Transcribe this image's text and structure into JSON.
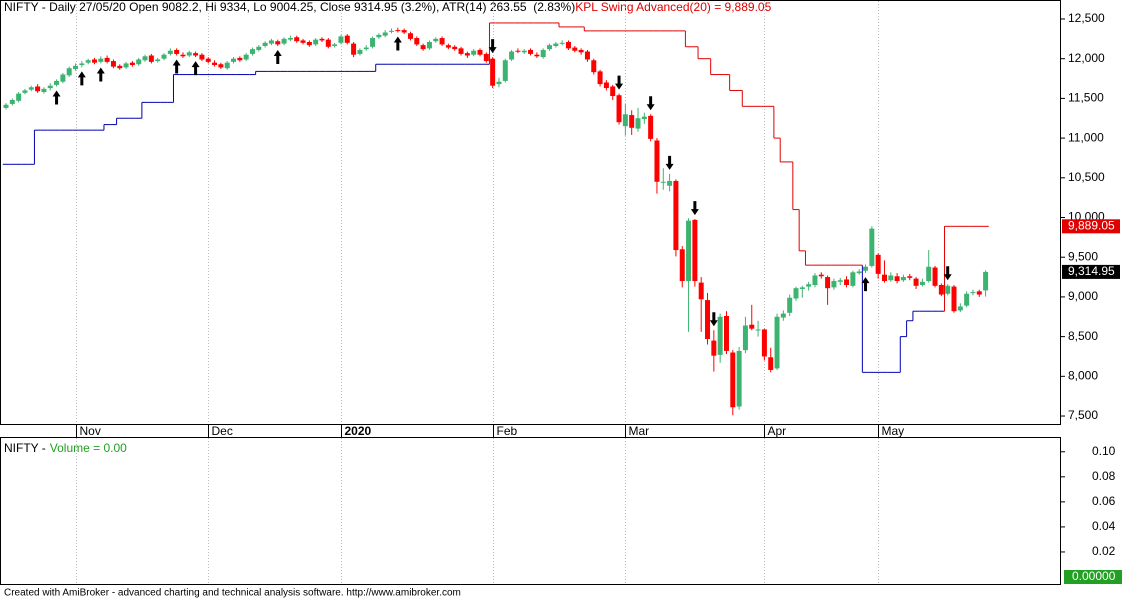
{
  "chart_data": [
    {
      "type": "candlestick",
      "title": "NIFTY - Daily 27/05/20 Open 9082.2, Hi 9334, Lo 9004.25, Close 9314.95 (3.2%), ATR(14) 263.55  (2.83%)",
      "indicator_label": "KPL Swing Advanced(20) = 9,889.05",
      "categories": [
        null,
        null,
        null,
        null,
        null,
        null,
        null,
        null,
        null,
        null,
        null,
        "Nov",
        null,
        null,
        null,
        null,
        null,
        null,
        null,
        null,
        null,
        null,
        null,
        null,
        null,
        null,
        null,
        null,
        null,
        null,
        null,
        null,
        "Dec",
        null,
        null,
        null,
        null,
        null,
        null,
        null,
        null,
        null,
        null,
        null,
        null,
        null,
        null,
        null,
        null,
        null,
        null,
        null,
        null,
        "2020",
        null,
        null,
        null,
        null,
        null,
        null,
        null,
        null,
        null,
        null,
        null,
        null,
        null,
        null,
        null,
        null,
        null,
        null,
        null,
        null,
        null,
        null,
        null,
        "Feb",
        null,
        null,
        null,
        null,
        null,
        null,
        null,
        null,
        null,
        null,
        null,
        null,
        null,
        null,
        null,
        null,
        null,
        null,
        null,
        null,
        "Mar",
        null,
        null,
        null,
        null,
        null,
        null,
        null,
        null,
        null,
        null,
        null,
        null,
        null,
        null,
        null,
        null,
        null,
        null,
        null,
        null,
        null,
        "Apr",
        null,
        null,
        null,
        null,
        null,
        null,
        null,
        null,
        null,
        null,
        null,
        null,
        null,
        null,
        null,
        null,
        null,
        "May",
        null,
        null,
        null,
        null,
        null,
        null,
        null,
        null,
        null,
        null,
        null,
        null,
        null,
        null,
        null,
        null,
        null
      ],
      "open": [
        11380,
        11430,
        11470,
        11570,
        11610,
        11650,
        11580,
        11630,
        11670,
        11710,
        11790,
        11870,
        11920,
        11950,
        11990,
        11960,
        12010,
        11970,
        11910,
        11890,
        11950,
        11930,
        11980,
        12040,
        11970,
        12000,
        12060,
        12110,
        12050,
        12040,
        12070,
        12050,
        12000,
        11950,
        11930,
        11880,
        11960,
        12010,
        11990,
        12060,
        12110,
        12160,
        12190,
        12220,
        12190,
        12240,
        12270,
        12230,
        12210,
        12180,
        12250,
        12240,
        12160,
        12200,
        12290,
        12190,
        12060,
        12120,
        12150,
        12270,
        12290,
        12340,
        12360,
        12360,
        12320,
        12260,
        12170,
        12130,
        12220,
        12260,
        12170,
        12150,
        12130,
        12070,
        12050,
        12110,
        12060,
        12000,
        11680,
        11720,
        11990,
        12100,
        12080,
        12110,
        12050,
        12020,
        12120,
        12160,
        12200,
        12210,
        12140,
        12110,
        12090,
        11980,
        11840,
        11700,
        11650,
        11540,
        11150,
        11290,
        11120,
        11240,
        11280,
        10970,
        10440,
        10400,
        10460,
        9600,
        9200,
        9970,
        9180,
        8960,
        8450,
        8270,
        8760,
        8300,
        7620,
        8330,
        8650,
        8590,
        8590,
        8240,
        8100,
        8740,
        8800,
        8980,
        9100,
        9130,
        9150,
        9280,
        9250,
        9120,
        9190,
        9220,
        9140,
        9300,
        9330,
        9390,
        9530,
        9280,
        9210,
        9260,
        9210,
        9260,
        9230,
        9150,
        9200,
        9370,
        9150,
        9040,
        9130,
        8830,
        8890,
        9050,
        9070,
        9082.2
      ],
      "high": [
        11440,
        11500,
        11580,
        11620,
        11660,
        11680,
        11640,
        11690,
        11740,
        11820,
        11900,
        11940,
        11970,
        12000,
        12010,
        12030,
        12040,
        11990,
        11930,
        11960,
        11970,
        12010,
        12050,
        12060,
        12010,
        12070,
        12130,
        12130,
        12080,
        12100,
        12090,
        12070,
        12020,
        11980,
        11950,
        11970,
        12020,
        12030,
        12070,
        12140,
        12170,
        12220,
        12250,
        12240,
        12270,
        12290,
        12290,
        12250,
        12230,
        12260,
        12270,
        12260,
        12200,
        12300,
        12310,
        12210,
        12130,
        12170,
        12280,
        12320,
        12360,
        12380,
        12390,
        12380,
        12340,
        12280,
        12190,
        12230,
        12270,
        12280,
        12190,
        12170,
        12150,
        12090,
        12120,
        12130,
        12080,
        12020,
        11760,
        12000,
        12110,
        12130,
        12120,
        12130,
        12080,
        12130,
        12190,
        12210,
        12230,
        12230,
        12160,
        12130,
        12110,
        12000,
        11860,
        11730,
        11670,
        11560,
        11430,
        11350,
        11380,
        11320,
        11300,
        11000,
        10620,
        10550,
        10480,
        9640,
        9990,
        9980,
        9250,
        9050,
        8580,
        8790,
        8820,
        8330,
        8370,
        8750,
        8900,
        8700,
        8600,
        8360,
        8790,
        8830,
        9030,
        9130,
        9140,
        9190,
        9300,
        9310,
        9270,
        9230,
        9240,
        9260,
        9330,
        9350,
        9410,
        9890,
        9550,
        9460,
        9310,
        9300,
        9280,
        9290,
        9250,
        9230,
        9590,
        9390,
        9170,
        9160,
        9150,
        8920,
        9070,
        9090,
        9090,
        9334
      ],
      "low": [
        11360,
        11410,
        11450,
        11550,
        11590,
        11570,
        11560,
        11600,
        11650,
        11690,
        11770,
        11850,
        11890,
        11930,
        11930,
        11940,
        11940,
        11880,
        11860,
        11870,
        11900,
        11910,
        11960,
        11940,
        11950,
        11980,
        12040,
        12040,
        12010,
        12020,
        12020,
        11970,
        11940,
        11900,
        11870,
        11860,
        11940,
        11960,
        11970,
        12040,
        12090,
        12140,
        12170,
        12160,
        12170,
        12220,
        12200,
        12180,
        12150,
        12160,
        12210,
        12130,
        12140,
        12180,
        12180,
        12020,
        12040,
        12100,
        12130,
        12250,
        12270,
        12320,
        12330,
        12310,
        12230,
        12160,
        12100,
        12110,
        12200,
        12160,
        12120,
        12100,
        12040,
        12010,
        12030,
        12030,
        11950,
        11630,
        11640,
        11700,
        11970,
        12070,
        12060,
        12040,
        12010,
        12000,
        12100,
        12140,
        12170,
        12110,
        12080,
        12050,
        11960,
        11800,
        11650,
        11600,
        11480,
        11170,
        11030,
        11040,
        11080,
        11180,
        10960,
        10300,
        10350,
        10330,
        9510,
        9120,
        8560,
        9130,
        8560,
        8400,
        8060,
        8170,
        8280,
        7510,
        7580,
        8290,
        8580,
        8500,
        8200,
        8050,
        8080,
        8700,
        8760,
        8950,
        8990,
        9080,
        9120,
        9230,
        8900,
        9090,
        9150,
        9120,
        9120,
        9280,
        9300,
        9370,
        9230,
        9180,
        9190,
        9170,
        9190,
        9210,
        9100,
        9130,
        9180,
        9120,
        9010,
        9020,
        8800,
        8810,
        8870,
        9020,
        9000,
        9004.25
      ],
      "close": [
        11420,
        11480,
        11560,
        11600,
        11640,
        11590,
        11620,
        11660,
        11720,
        11800,
        11880,
        11910,
        11940,
        11980,
        11950,
        12000,
        11960,
        11900,
        11880,
        11940,
        11920,
        11990,
        12030,
        11960,
        11990,
        12050,
        12100,
        12060,
        12030,
        12080,
        12040,
        11990,
        11960,
        11920,
        11890,
        11950,
        12000,
        11980,
        12050,
        12120,
        12150,
        12200,
        12230,
        12180,
        12250,
        12260,
        12220,
        12200,
        12170,
        12240,
        12230,
        12150,
        12180,
        12280,
        12200,
        12050,
        12110,
        12140,
        12260,
        12300,
        12330,
        12350,
        12350,
        12330,
        12250,
        12180,
        12120,
        12210,
        12250,
        12180,
        12140,
        12120,
        12060,
        12040,
        12100,
        12050,
        11970,
        11660,
        11710,
        11980,
        12090,
        12090,
        12100,
        12060,
        12030,
        12110,
        12170,
        12190,
        12200,
        12130,
        12100,
        12080,
        11990,
        11830,
        11680,
        11630,
        11530,
        11200,
        11300,
        11130,
        11250,
        11270,
        10990,
        10450,
        10450,
        10460,
        9590,
        9200,
        9960,
        9200,
        8970,
        8470,
        8260,
        8750,
        8320,
        7610,
        8320,
        8640,
        8600,
        8590,
        8250,
        8080,
        8750,
        8790,
        8990,
        9110,
        9120,
        9160,
        9270,
        9260,
        9110,
        9200,
        9210,
        9150,
        9310,
        9320,
        9380,
        9860,
        9290,
        9200,
        9270,
        9200,
        9250,
        9240,
        9140,
        9190,
        9380,
        9140,
        9030,
        9140,
        8820,
        8880,
        9040,
        9060,
        9030,
        9314.95
      ],
      "up_color": "#3cb371",
      "down_color": "#ff0000",
      "stops": [
        {
          "color": "#0000b0",
          "values": [
            10670,
            10670,
            10670,
            10670,
            10670,
            11100,
            11100,
            11100,
            11100,
            11100,
            11100,
            11100,
            11100,
            11100,
            11100,
            11100,
            11170,
            11170,
            11250,
            11250,
            11250,
            11250,
            11450,
            11450,
            11450,
            11450,
            11450,
            11800,
            11800,
            11800,
            11800,
            11800,
            11800,
            11800,
            11800,
            11800,
            11800,
            11800,
            11800,
            11800,
            11840,
            11840,
            11840,
            11840,
            11840,
            11840,
            11840,
            11840,
            11840,
            11840,
            11840,
            11840,
            11840,
            11840,
            11840,
            11840,
            11840,
            11840,
            11840,
            11930,
            11930,
            11930,
            11930,
            11930,
            11930,
            11930,
            11930,
            11930,
            11930,
            11930,
            11930,
            11930,
            11930,
            11930,
            11930,
            11930,
            11930,
            null,
            null,
            null,
            null,
            null,
            null,
            null,
            null,
            null,
            null,
            null,
            null,
            null,
            null,
            null,
            null,
            null,
            null,
            null,
            null,
            null,
            null,
            null,
            null,
            null,
            null,
            null,
            null,
            null,
            null,
            null,
            null,
            null,
            null,
            null,
            null,
            null,
            null,
            null,
            null,
            null,
            null,
            null,
            null,
            null,
            null,
            null,
            null,
            null,
            null,
            null,
            null,
            null,
            null,
            null,
            null,
            null,
            null,
            null,
            8050,
            8050,
            8050,
            8050,
            8050,
            8050,
            8500,
            8700,
            8820,
            8820,
            8820,
            8820,
            8820,
            null,
            null,
            null,
            null,
            null,
            null,
            null
          ]
        },
        {
          "color": "#e00000",
          "values": [
            null,
            null,
            null,
            null,
            null,
            null,
            null,
            null,
            null,
            null,
            null,
            null,
            null,
            null,
            null,
            null,
            null,
            null,
            null,
            null,
            null,
            null,
            null,
            null,
            null,
            null,
            null,
            null,
            null,
            null,
            null,
            null,
            null,
            null,
            null,
            null,
            null,
            null,
            null,
            null,
            null,
            null,
            null,
            null,
            null,
            null,
            null,
            null,
            null,
            null,
            null,
            null,
            null,
            null,
            null,
            null,
            null,
            null,
            null,
            null,
            null,
            null,
            null,
            null,
            null,
            null,
            null,
            null,
            null,
            null,
            null,
            null,
            null,
            null,
            null,
            null,
            null,
            12450,
            12450,
            12450,
            12450,
            12450,
            12450,
            12450,
            12450,
            12450,
            12450,
            12450,
            12400,
            12400,
            12400,
            12400,
            12350,
            12350,
            12350,
            12350,
            12350,
            12350,
            12350,
            12350,
            12350,
            12350,
            12350,
            12350,
            12350,
            12350,
            12350,
            12350,
            12150,
            12150,
            12000,
            12000,
            11800,
            11800,
            11800,
            11600,
            11600,
            11400,
            11400,
            11400,
            11400,
            11400,
            11000,
            10700,
            10700,
            10100,
            9580,
            9400,
            9400,
            9400,
            9400,
            9400,
            9400,
            9400,
            9400,
            9400,
            null,
            null,
            null,
            null,
            null,
            null,
            null,
            null,
            null,
            null,
            null,
            null,
            null,
            9889.05,
            9889.05,
            9889.05,
            9889.05,
            9889.05,
            9889.05,
            9889.05
          ]
        }
      ],
      "buy_signals": [
        8,
        12,
        15,
        27,
        30,
        43,
        62,
        136
      ],
      "sell_signals": [
        77,
        97,
        102,
        105,
        109,
        112,
        149
      ],
      "ylim": [
        7387,
        12739
      ],
      "yticks": [
        {
          "value": 7500,
          "label": "7,500"
        },
        {
          "value": 8000,
          "label": "8,000"
        },
        {
          "value": 8500,
          "label": "8,500"
        },
        {
          "value": 9000,
          "label": "9,000"
        },
        {
          "value": 9500,
          "label": "9,500"
        },
        {
          "value": 10000,
          "label": "10,000"
        },
        {
          "value": 10500,
          "label": "10,500"
        },
        {
          "value": 11000,
          "label": "11,000"
        },
        {
          "value": 11500,
          "label": "11,500"
        },
        {
          "value": 12000,
          "label": "12,000"
        },
        {
          "value": 12500,
          "label": "12,500"
        }
      ],
      "last_price": {
        "value": 9314.95,
        "label": "9,314.95"
      },
      "last_stop": {
        "value": 9889.05,
        "label": "9,889.05"
      }
    },
    {
      "type": "bar",
      "title": "NIFTY -",
      "series": [
        {
          "name": "Volume = 0.00",
          "color": "#22a022",
          "values": []
        }
      ],
      "ylim": [
        0,
        0.111
      ],
      "yticks": [
        0.02,
        0.04,
        0.06,
        0.08,
        {
          "value": 0.1,
          "label": "0.10"
        }
      ],
      "last_value": {
        "value": 0,
        "label": "0.00000"
      }
    }
  ],
  "footer": "Created with AmiBroker - advanced charting and technical analysis software. http://www.amibroker.com"
}
